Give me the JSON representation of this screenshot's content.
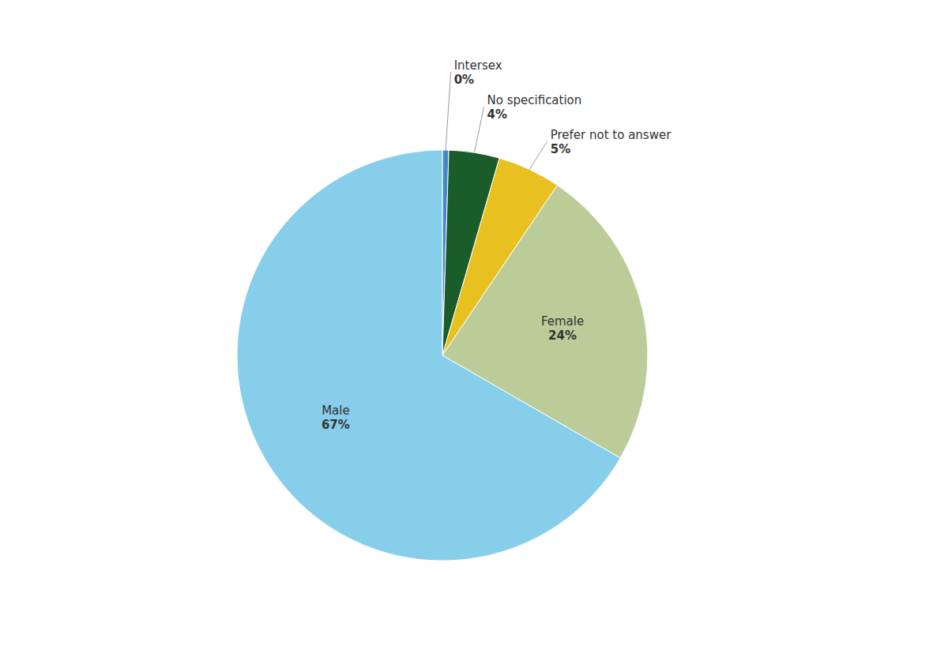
{
  "chart_data": {
    "type": "pie",
    "categories": [
      "Intersex",
      "No specification",
      "Prefer not to answer",
      "Female",
      "Male"
    ],
    "values": [
      0.5,
      4,
      5,
      24,
      67
    ],
    "value_labels": [
      "0%",
      "4%",
      "5%",
      "24%",
      "67%"
    ],
    "colors": [
      "#4488CC",
      "#1A5C2A",
      "#E8C020",
      "#BBCC99",
      "#87CEEB"
    ],
    "data_labels": true
  }
}
